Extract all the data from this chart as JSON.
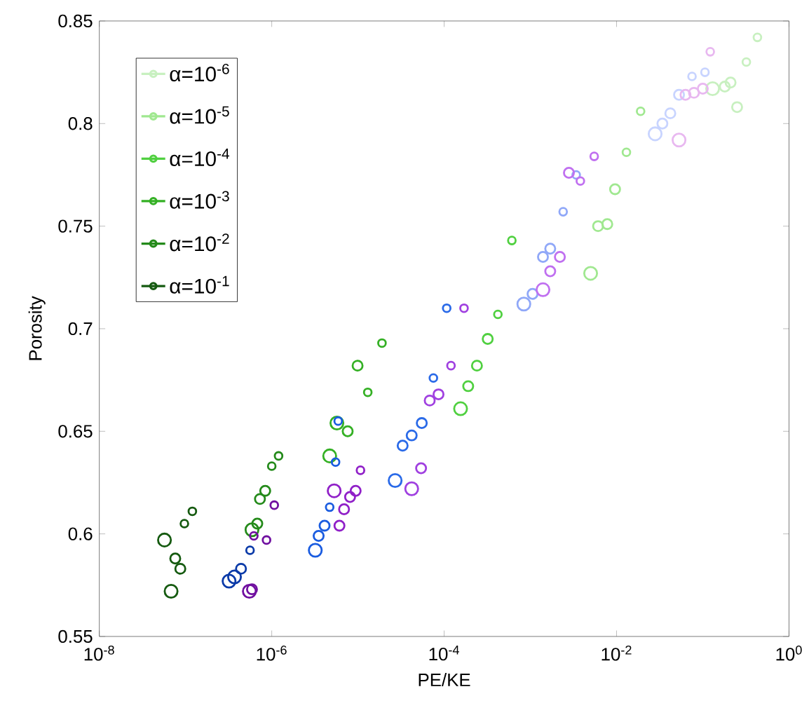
{
  "chart_data": {
    "type": "bubble",
    "xlabel": "PE/KE",
    "ylabel": "Porosity",
    "log": "x",
    "marker": "circle",
    "legend": "top left",
    "xlim": [
      1e-08,
      1
    ],
    "ylim": [
      0.55,
      0.85
    ],
    "xticks": [
      {
        "value": 1e-08,
        "label": "10$^{-8}$"
      },
      {
        "value": 1e-06,
        "label": "10$^{-6}$"
      },
      {
        "value": 0.0001,
        "label": "10$^{-4}$"
      },
      {
        "value": 0.01,
        "label": "10$^{-2}$"
      },
      {
        "value": 1,
        "label": "10$^{0}$"
      }
    ],
    "yticks": [
      0.55,
      0.6,
      0.65,
      0.7,
      0.75,
      0.8,
      0.85
    ],
    "series": [
      {
        "name": "α=10$^{-6}$",
        "color": "#c8f0c0",
        "x": [
          0.13,
          0.18,
          0.21,
          0.25,
          0.32,
          0.43
        ],
        "values": [
          0.817,
          0.818,
          0.82,
          0.808,
          0.83,
          0.842
        ],
        "sizes": [
          1,
          0.6,
          0.6,
          0.6,
          0.35,
          0.35
        ]
      },
      {
        "name": "α=10$^{-5}$",
        "color": "#a0e890",
        "x": [
          0.005,
          0.0061,
          0.0078,
          0.0096,
          0.013,
          0.019
        ],
        "values": [
          0.727,
          0.75,
          0.751,
          0.768,
          0.786,
          0.806
        ],
        "sizes": [
          1,
          0.6,
          0.6,
          0.6,
          0.35,
          0.35
        ]
      },
      {
        "name": "α=10$^{-4}$",
        "color": "#50d040",
        "x": [
          0.000155,
          0.00019,
          0.00024,
          0.00032,
          0.00042,
          0.00061
        ],
        "values": [
          0.661,
          0.672,
          0.682,
          0.695,
          0.707,
          0.743
        ],
        "sizes": [
          1,
          0.6,
          0.6,
          0.6,
          0.35,
          0.35
        ]
      },
      {
        "name": "α=10$^{-3}$",
        "color": "#34b024",
        "x": [
          4.7e-06,
          5.7e-06,
          7.6e-06,
          9.9e-06,
          1.3e-05,
          1.9e-05
        ],
        "values": [
          0.638,
          0.654,
          0.65,
          0.682,
          0.669,
          0.693
        ],
        "sizes": [
          1,
          1,
          0.6,
          0.6,
          0.35,
          0.35
        ]
      },
      {
        "name": "α=10$^{-2}$",
        "color": "#248a1a",
        "x": [
          5.9e-07,
          6.8e-07,
          7.3e-07,
          8.4e-07,
          1e-06,
          1.2e-06
        ],
        "values": [
          0.602,
          0.605,
          0.617,
          0.621,
          0.633,
          0.638
        ],
        "sizes": [
          1,
          0.6,
          0.6,
          0.6,
          0.35,
          0.35
        ]
      },
      {
        "name": "α=10$^{-1}$",
        "color": "#155a10",
        "x": [
          5.7e-08,
          7.6e-08,
          8.7e-08,
          6.8e-08,
          9.7e-08,
          1.2e-07
        ],
        "values": [
          0.597,
          0.588,
          0.583,
          0.572,
          0.605,
          0.611
        ],
        "sizes": [
          1,
          0.6,
          0.6,
          1,
          0.35,
          0.35
        ]
      },
      {
        "color": "#c8d4ff",
        "x": [
          0.028,
          0.034,
          0.042,
          0.053,
          0.075,
          0.106
        ],
        "values": [
          0.795,
          0.8,
          0.805,
          0.814,
          0.823,
          0.825
        ],
        "sizes": [
          1,
          0.6,
          0.6,
          0.6,
          0.35,
          0.35
        ]
      },
      {
        "color": "#90a8f8",
        "x": [
          0.00084,
          0.00106,
          0.0014,
          0.0017,
          0.0024,
          0.0034
        ],
        "values": [
          0.712,
          0.717,
          0.735,
          0.739,
          0.757,
          0.775
        ],
        "sizes": [
          1,
          0.6,
          0.6,
          0.6,
          0.35,
          0.35
        ]
      },
      {
        "color": "#2a6ae8",
        "x": [
          2.7e-05,
          3.3e-05,
          4.2e-05,
          5.5e-05,
          7.5e-05,
          0.000107
        ],
        "values": [
          0.626,
          0.643,
          0.648,
          0.654,
          0.676,
          0.71
        ],
        "sizes": [
          1,
          0.6,
          0.6,
          0.6,
          0.35,
          0.35
        ]
      },
      {
        "color": "#1a5ce0",
        "x": [
          3.2e-06,
          3.5e-06,
          4.1e-06,
          4.7e-06,
          5.5e-06,
          5.9e-06
        ],
        "values": [
          0.592,
          0.599,
          0.604,
          0.613,
          0.635,
          0.655
        ],
        "sizes": [
          1,
          0.6,
          0.6,
          0.35,
          0.35,
          0.35
        ]
      },
      {
        "color": "#0a3aa8",
        "x": [
          3.2e-07,
          3.7e-07,
          4.4e-07,
          5.6e-07
        ],
        "values": [
          0.577,
          0.579,
          0.583,
          0.592
        ],
        "sizes": [
          1,
          1,
          0.6,
          0.35
        ]
      },
      {
        "color": "#e8b8f0",
        "x": [
          0.053,
          0.063,
          0.079,
          0.1,
          0.122
        ],
        "values": [
          0.792,
          0.814,
          0.815,
          0.817,
          0.835
        ],
        "sizes": [
          1,
          0.6,
          0.6,
          0.6,
          0.35
        ]
      },
      {
        "color": "#c070f0",
        "x": [
          0.0014,
          0.0017,
          0.0022,
          0.0028,
          0.0038,
          0.0055
        ],
        "values": [
          0.719,
          0.728,
          0.735,
          0.776,
          0.772,
          0.784
        ],
        "sizes": [
          1,
          0.6,
          0.6,
          0.6,
          0.35,
          0.35
        ]
      },
      {
        "color": "#a040e0",
        "x": [
          4.2e-05,
          5.4e-05,
          6.8e-05,
          8.6e-05,
          0.00012,
          0.00017
        ],
        "values": [
          0.622,
          0.632,
          0.665,
          0.668,
          0.682,
          0.71
        ],
        "sizes": [
          1,
          0.6,
          0.6,
          0.6,
          0.35,
          0.35
        ]
      },
      {
        "color": "#9020c8",
        "x": [
          5.3e-06,
          6.1e-06,
          6.9e-06,
          8.1e-06,
          9.4e-06,
          1.07e-05
        ],
        "values": [
          0.621,
          0.604,
          0.612,
          0.618,
          0.621,
          0.631
        ],
        "sizes": [
          1,
          0.6,
          0.6,
          0.6,
          0.6,
          0.35
        ]
      },
      {
        "color": "#7010a0",
        "x": [
          5.5e-07,
          5.9e-07,
          6.2e-07,
          8.7e-07,
          1.07e-06
        ],
        "values": [
          0.572,
          0.573,
          0.599,
          0.597,
          0.614
        ],
        "sizes": [
          1,
          0.6,
          0.35,
          0.35,
          0.35
        ]
      }
    ]
  }
}
